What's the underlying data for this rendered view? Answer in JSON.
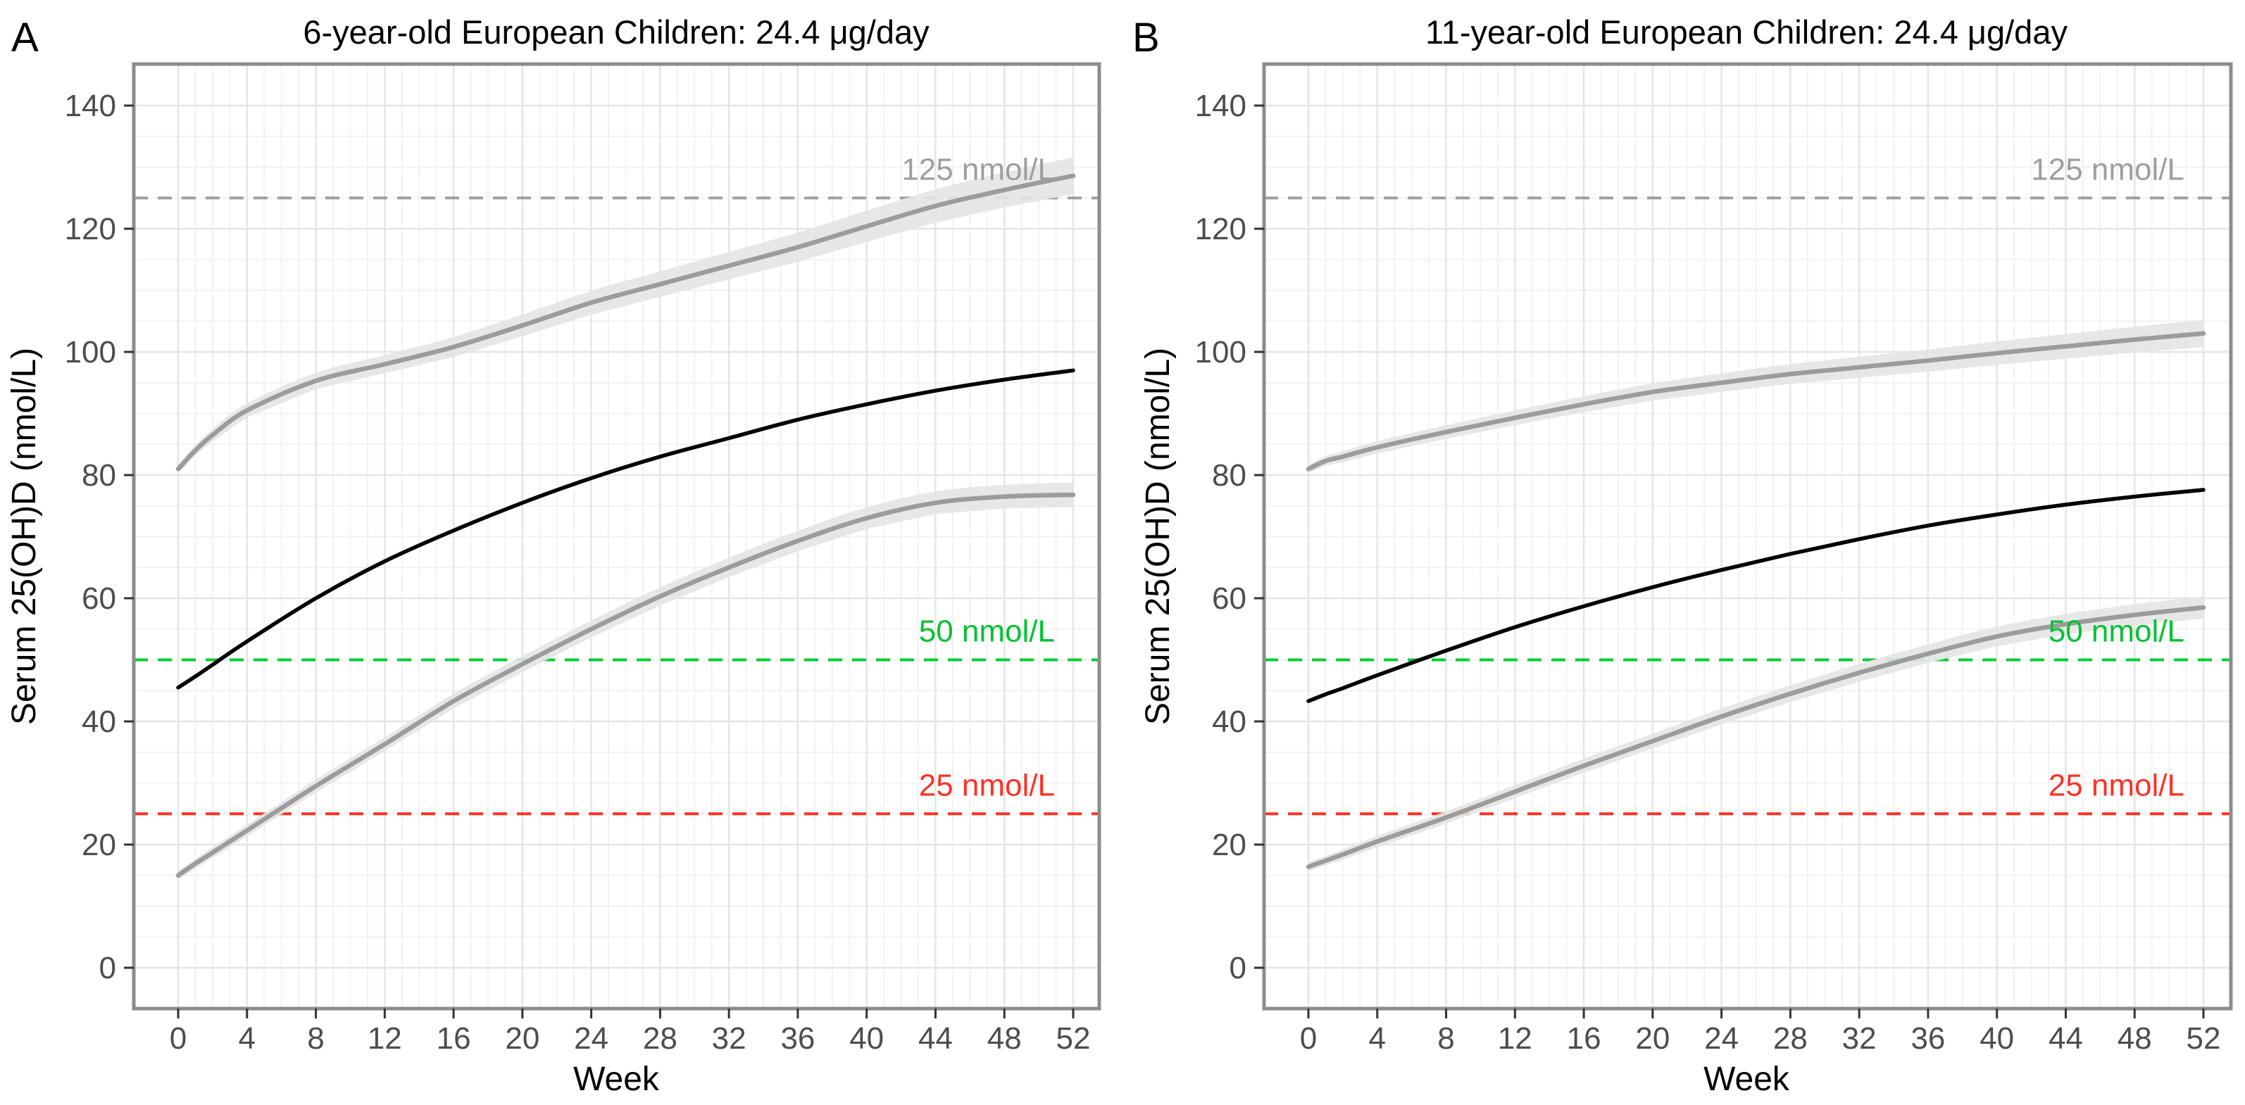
{
  "figure": {
    "panel_letters": [
      "A",
      "B"
    ]
  },
  "axes": {
    "x": {
      "label": "Week",
      "ticks": [
        0,
        4,
        8,
        12,
        16,
        20,
        24,
        28,
        32,
        36,
        40,
        44,
        48,
        52
      ],
      "domain": [
        0,
        52
      ],
      "minor_step": 1
    },
    "y": {
      "label": "Serum 25(OH)D (nmol/L)",
      "ticks": [
        0,
        20,
        40,
        60,
        80,
        100,
        120,
        140
      ],
      "domain": [
        0,
        140
      ],
      "minor_step": 5
    }
  },
  "reference_lines": [
    {
      "value": 125,
      "label": "125 nmol/L",
      "line_color": "#A0A0A0",
      "text_color": "#9E9E9E"
    },
    {
      "value": 50,
      "label": "50 nmol/L",
      "line_color": "#00CC33",
      "text_color": "#00C232"
    },
    {
      "value": 25,
      "label": "25 nmol/L",
      "line_color": "#FF3126",
      "text_color": "#FF3126"
    }
  ],
  "style_colors": {
    "gray_curve": "#9C9C9C",
    "black_curve": "#000000",
    "band": "#E4E4E4",
    "grid_minor": "#F2F2F2",
    "grid_major": "#E6E6E6",
    "panel_border": "#8C8C8C",
    "tick_mark": "#333333",
    "tick_text": "#4D4D4D"
  },
  "chart_data": [
    {
      "type": "line",
      "title": "6-year-old European Children: 24.4 μg/day",
      "xlabel": "Week",
      "ylabel": "Serum 25(OH)D (nmol/L)",
      "xlim": [
        0,
        52
      ],
      "ylim": [
        0,
        140
      ],
      "grid": "on",
      "legend": "none",
      "x": [
        0,
        1,
        2,
        4,
        8,
        12,
        16,
        20,
        24,
        28,
        32,
        36,
        40,
        44,
        48,
        52
      ],
      "series": [
        {
          "name": "upper-gray-curve",
          "color": "#9C9C9C",
          "width": 6.5,
          "values": [
            81,
            84,
            86.5,
            90.5,
            95.3,
            98,
            100.8,
            104.3,
            108,
            111,
            114,
            117,
            120.4,
            123.7,
            126.3,
            128.6
          ],
          "band_halfwidth": [
            0.7,
            3.0
          ]
        },
        {
          "name": "middle-black-curve",
          "color": "#000000",
          "width": 5.5,
          "values": [
            45.5,
            47.3,
            49.2,
            53,
            60,
            66,
            71,
            75.5,
            79.5,
            83,
            86,
            89,
            91.5,
            93.7,
            95.5,
            97
          ],
          "band_halfwidth": [
            0,
            0
          ]
        },
        {
          "name": "lower-gray-curve",
          "color": "#9C9C9C",
          "width": 6.5,
          "values": [
            15,
            16.9,
            18.7,
            22.3,
            29.5,
            36.3,
            43.3,
            49.3,
            55,
            60.3,
            65,
            69.3,
            73,
            75.5,
            76.5,
            76.8
          ],
          "band_halfwidth": [
            0.7,
            2.0
          ]
        }
      ]
    },
    {
      "type": "line",
      "title": "11-year-old European Children: 24.4 μg/day",
      "xlabel": "Week",
      "ylabel": "Serum 25(OH)D (nmol/L)",
      "xlim": [
        0,
        52
      ],
      "ylim": [
        0,
        140
      ],
      "grid": "on",
      "legend": "none",
      "x": [
        0,
        1,
        2,
        4,
        8,
        12,
        16,
        20,
        24,
        28,
        32,
        36,
        40,
        44,
        48,
        52
      ],
      "series": [
        {
          "name": "upper-gray-curve",
          "color": "#9C9C9C",
          "width": 6.5,
          "values": [
            81,
            82.3,
            83,
            84.5,
            87,
            89.3,
            91.5,
            93.5,
            95,
            96.4,
            97.5,
            98.6,
            99.8,
            100.9,
            102,
            103
          ],
          "band_halfwidth": [
            0.7,
            2.2
          ]
        },
        {
          "name": "middle-black-curve",
          "color": "#000000",
          "width": 5.5,
          "values": [
            43.3,
            44.4,
            45.4,
            47.5,
            51.5,
            55.3,
            58.7,
            61.8,
            64.6,
            67.2,
            69.6,
            71.8,
            73.6,
            75.2,
            76.5,
            77.6
          ],
          "band_halfwidth": [
            0,
            0
          ]
        },
        {
          "name": "lower-gray-curve",
          "color": "#9C9C9C",
          "width": 6.5,
          "values": [
            16.4,
            17.4,
            18.4,
            20.5,
            24.4,
            28.6,
            32.8,
            36.8,
            40.8,
            44.5,
            47.9,
            51,
            53.8,
            55.8,
            57.3,
            58.5
          ],
          "band_halfwidth": [
            0.7,
            1.8
          ]
        }
      ]
    }
  ]
}
